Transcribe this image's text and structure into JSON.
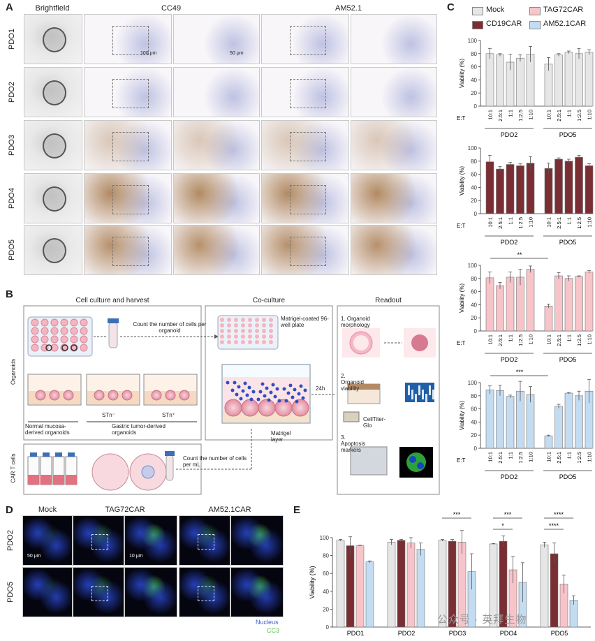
{
  "panel_labels": {
    "a": "A",
    "b": "B",
    "c": "C",
    "d": "D",
    "e": "E"
  },
  "panel_a": {
    "col_brightfield": "Brightfield",
    "col_cc49": "CC49",
    "col_am521": "AM52.1",
    "rows": [
      "PDO1",
      "PDO2",
      "PDO3",
      "PDO4",
      "PDO5"
    ],
    "scale_100": "100 μm",
    "scale_50": "50 μm"
  },
  "panel_b": {
    "title_harvest": "Cell culture and harvest",
    "title_coculture": "Co-culture",
    "title_readout": "Readout",
    "count_organoid": "Count the number of cells per organoid",
    "plate_label": "Matrigel-coated 96-well plate",
    "side_organoids": "Organoids",
    "side_cart": "CAR T cells",
    "stn_neg": "STn⁻",
    "stn_pos": "STn⁺",
    "normal": "Normal mucosa-derived organoids",
    "gastric": "Gastric tumor-derived organoids",
    "time": "24h",
    "matrigel": "Matrigel layer",
    "count_ml": "Count the number of cells per mL",
    "readout1": "1. Organoid morphology",
    "readout2": "2. Organoid viability",
    "ctg": "CellTiter-Glo",
    "readout3": "3. Apoptosis markers"
  },
  "panel_c": {
    "legend": [
      {
        "name": "Mock",
        "color": "#e6e6e6"
      },
      {
        "name": "TAG72CAR",
        "color": "#f7c4c9"
      },
      {
        "name": "CD19CAR",
        "color": "#7a2e33"
      },
      {
        "name": "AM52.1CAR",
        "color": "#c3dcf2"
      }
    ],
    "ylabel": "Viability (%)",
    "et_label": "E:T",
    "groups": [
      "PDO2",
      "PDO5"
    ]
  },
  "panel_d": {
    "col_mock": "Mock",
    "col_tag": "TAG72CAR",
    "col_am": "AM52.1CAR",
    "rows": [
      "PDO2",
      "PDO5"
    ],
    "legend_nucleus": "Nucleus",
    "legend_cc3": "CC3",
    "scale_a": "50 μm",
    "scale_b": "10 μm"
  },
  "watermark": "公众号 · 英拜生物",
  "chart_data": [
    {
      "type": "bar",
      "id": "C-Mock",
      "categories": [
        "10:1",
        "2.5:1",
        "1:1",
        "1:2.5",
        "1:10"
      ],
      "series": [
        {
          "name": "PDO2",
          "values": [
            80,
            78,
            67,
            73,
            79
          ],
          "err": [
            8,
            2,
            12,
            5,
            12
          ]
        },
        {
          "name": "PDO5",
          "values": [
            64,
            78,
            82,
            80,
            82
          ],
          "err": [
            10,
            2,
            2,
            8,
            4
          ]
        }
      ],
      "ylabel": "Viability (%)",
      "ylim": [
        0,
        100
      ],
      "color": "#e6e6e6"
    },
    {
      "type": "bar",
      "id": "C-CD19CAR",
      "categories": [
        "10:1",
        "2.5:1",
        "1:1",
        "1:2.5",
        "1:10"
      ],
      "series": [
        {
          "name": "PDO2",
          "values": [
            79,
            68,
            75,
            73,
            77
          ],
          "err": [
            10,
            4,
            3,
            3,
            10
          ]
        },
        {
          "name": "PDO5",
          "values": [
            69,
            83,
            80,
            86,
            73
          ],
          "err": [
            8,
            2,
            3,
            3,
            3
          ]
        }
      ],
      "ylabel": "Viability (%)",
      "ylim": [
        0,
        100
      ],
      "color": "#7a2e33"
    },
    {
      "type": "bar",
      "id": "C-TAG72CAR",
      "categories": [
        "10:1",
        "2.5:1",
        "1:1",
        "1:2.5",
        "1:10"
      ],
      "series": [
        {
          "name": "PDO2",
          "values": [
            81,
            69,
            82,
            82,
            94
          ],
          "err": [
            9,
            5,
            8,
            12,
            5
          ]
        },
        {
          "name": "PDO5",
          "values": [
            38,
            84,
            80,
            83,
            90
          ],
          "err": [
            3,
            5,
            4,
            1,
            2
          ]
        }
      ],
      "ylabel": "Viability (%)",
      "ylim": [
        0,
        100
      ],
      "color": "#f7c4c9",
      "sig": "**"
    },
    {
      "type": "bar",
      "id": "C-AM52.1CAR",
      "categories": [
        "10:1",
        "2.5:1",
        "1:1",
        "1:2.5",
        "1:10"
      ],
      "series": [
        {
          "name": "PDO2",
          "values": [
            89,
            88,
            79,
            87,
            82
          ],
          "err": [
            6,
            8,
            2,
            15,
            12
          ]
        },
        {
          "name": "PDO5",
          "values": [
            19,
            64,
            84,
            80,
            87
          ],
          "err": [
            1,
            3,
            1,
            7,
            18
          ]
        }
      ],
      "ylabel": "Viability (%)",
      "ylim": [
        0,
        100
      ],
      "color": "#c3dcf2",
      "sig": "***"
    },
    {
      "type": "bar",
      "id": "E",
      "categories": [
        "PDO1",
        "PDO2",
        "PDO3",
        "PDO4",
        "PDO5"
      ],
      "series": [
        {
          "name": "Mock",
          "values": [
            97,
            95,
            97,
            93,
            92
          ],
          "err": [
            1,
            3,
            1,
            0.5,
            3
          ]
        },
        {
          "name": "CD19CAR",
          "values": [
            91,
            97,
            96,
            96,
            82
          ],
          "err": [
            10,
            1,
            2,
            6,
            12
          ]
        },
        {
          "name": "TAG72CAR",
          "values": [
            91,
            94,
            95,
            64,
            48
          ],
          "err": [
            0.5,
            6,
            13,
            15,
            10
          ]
        },
        {
          "name": "AM52.1CAR",
          "values": [
            73,
            87,
            62,
            50,
            30
          ],
          "err": [
            1,
            7,
            20,
            22,
            5
          ]
        }
      ],
      "ylabel": "Viability (%)",
      "ylim": [
        0,
        100
      ],
      "sig": [
        {
          "group": "PDO3",
          "label": "***"
        },
        {
          "group": "PDO4",
          "label": "***"
        },
        {
          "group": "PDO4",
          "label": "*"
        },
        {
          "group": "PDO5",
          "label": "****"
        },
        {
          "group": "PDO5",
          "label": "****"
        }
      ]
    }
  ]
}
